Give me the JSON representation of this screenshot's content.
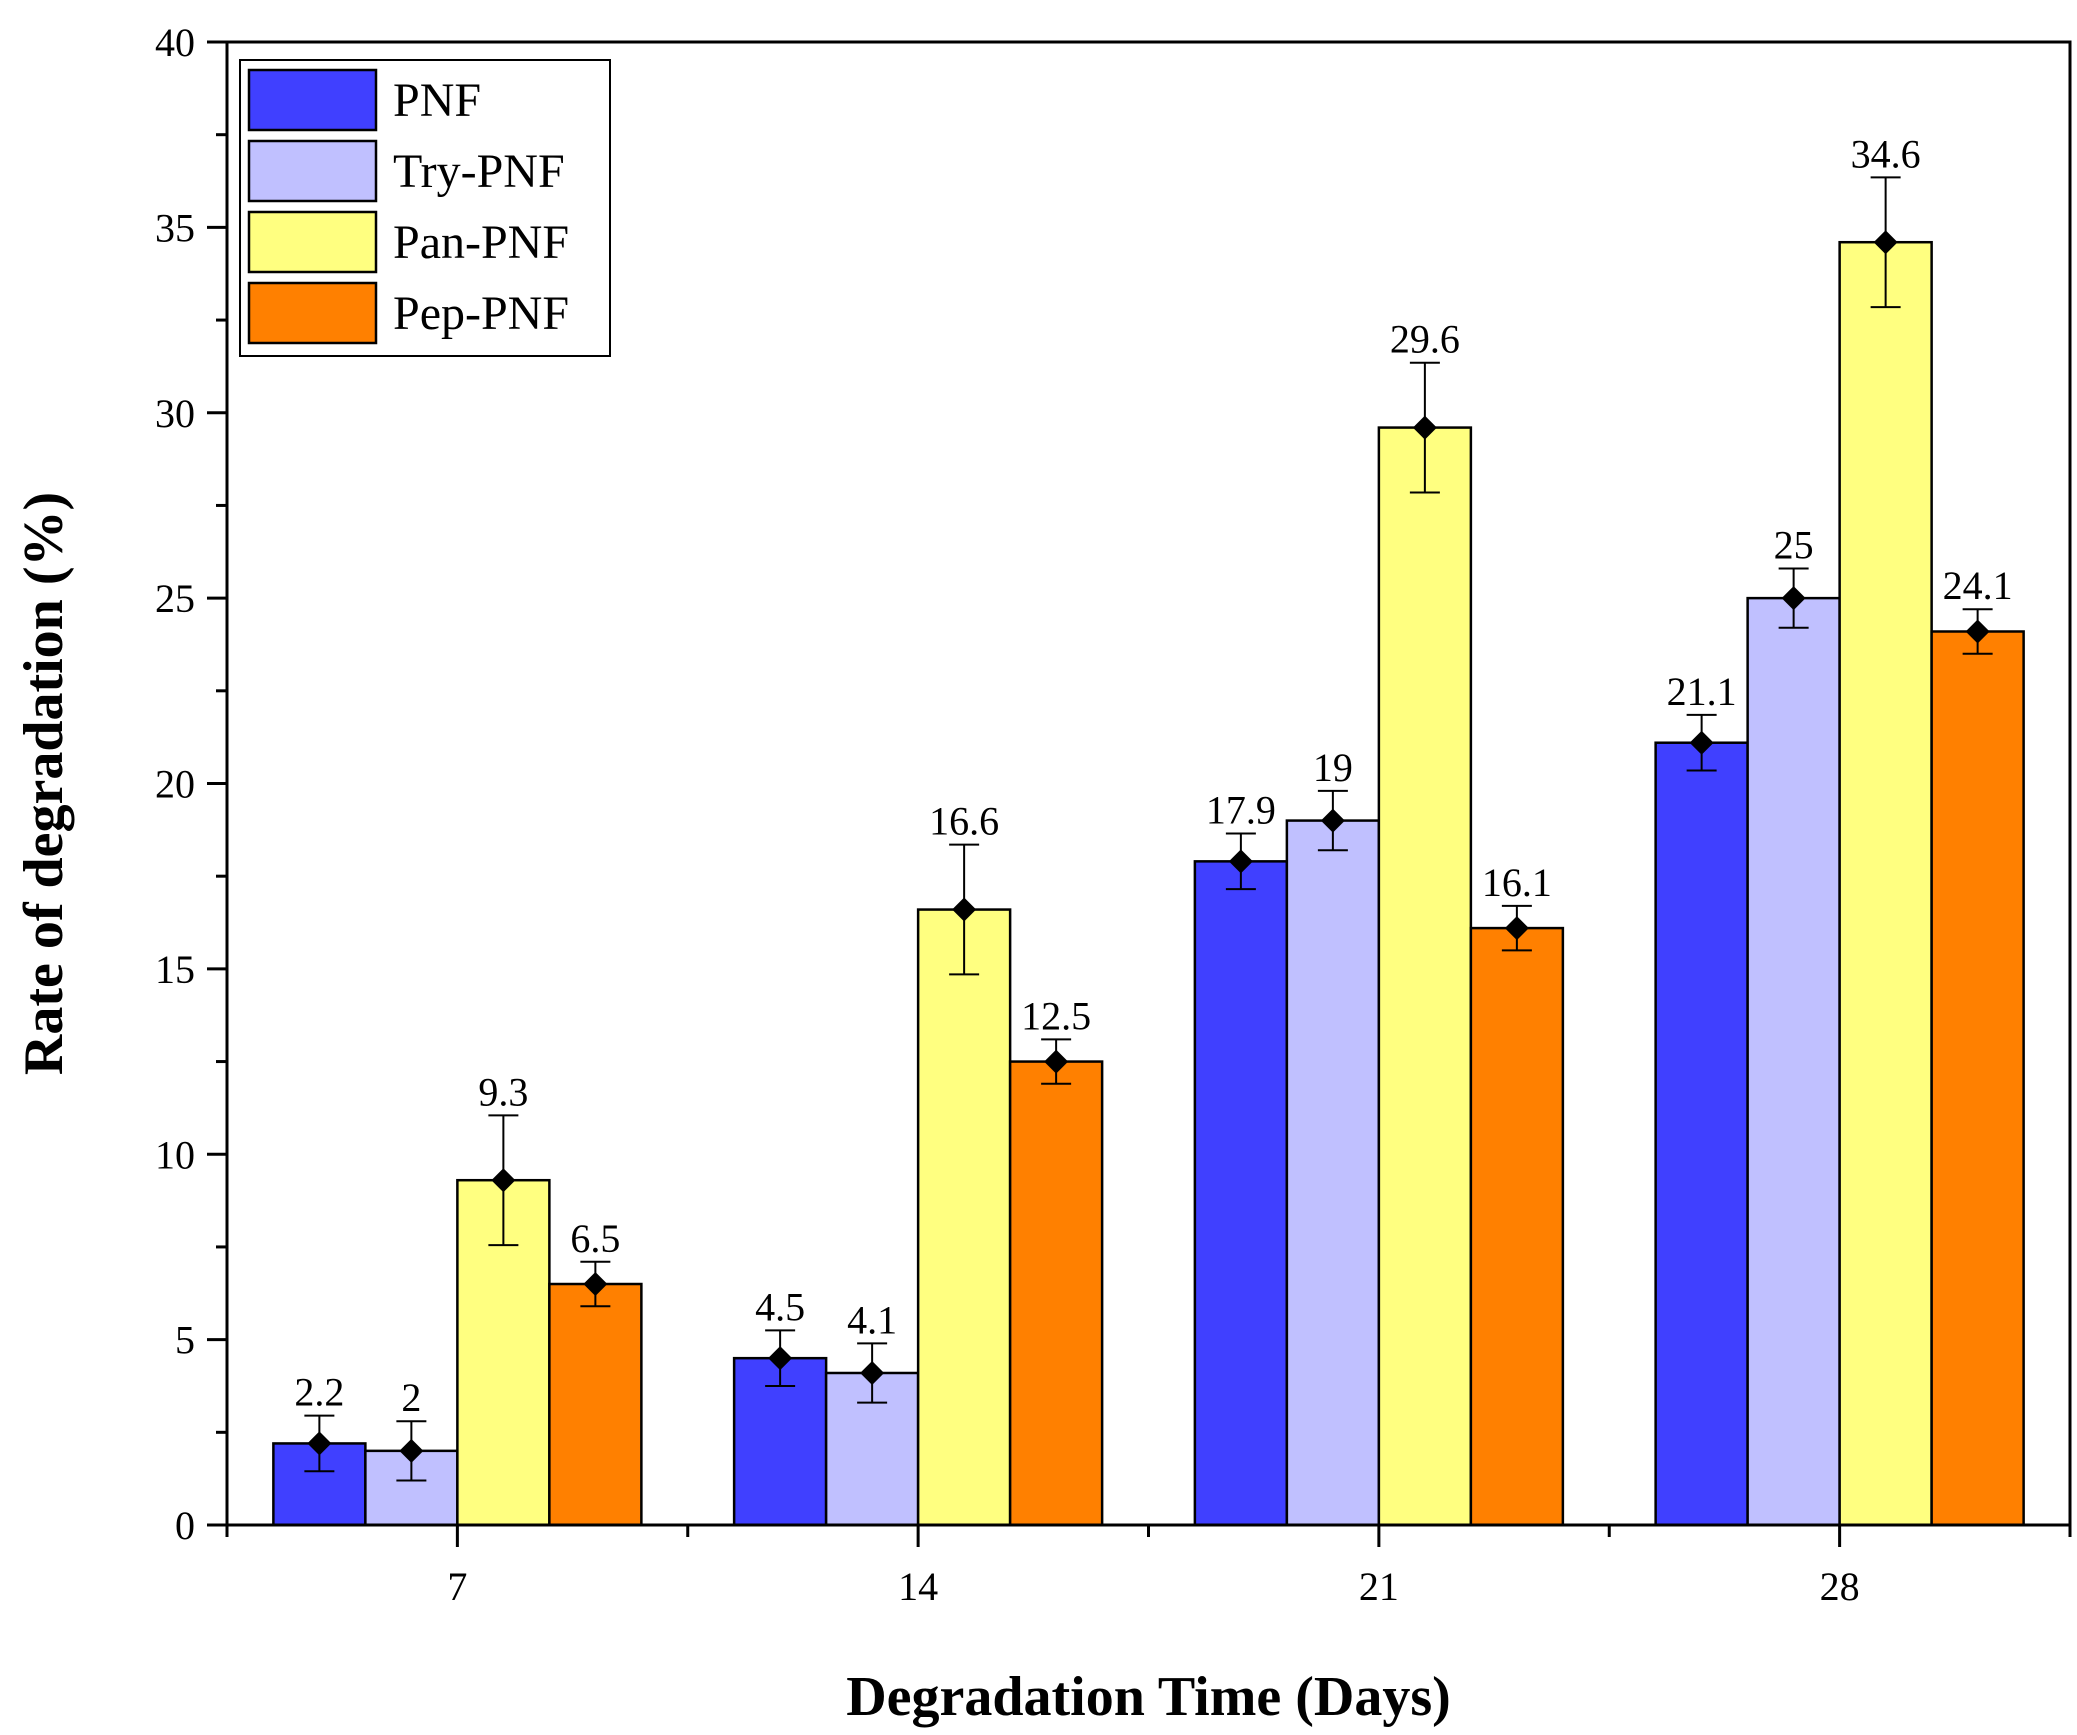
{
  "chart_data": {
    "type": "bar",
    "title": "",
    "xlabel": "Degradation Time (Days)",
    "ylabel": "Rate of degradation (%)",
    "categories": [
      "7",
      "14",
      "21",
      "28"
    ],
    "ylim": [
      0,
      40
    ],
    "yticks": [
      0,
      5,
      10,
      15,
      20,
      25,
      30,
      35,
      40
    ],
    "ytick_labels": [
      "0",
      "5",
      "10",
      "15",
      "20",
      "25",
      "30",
      "35",
      "40"
    ],
    "legend_position": "top-left",
    "grid": false,
    "series": [
      {
        "name": "PNF",
        "color": "#4040ff",
        "values": [
          2.2,
          4.5,
          17.9,
          21.1
        ],
        "labels": [
          "2.2",
          "4.5",
          "17.9",
          "21.1"
        ],
        "errors": [
          0.75,
          0.75,
          0.75,
          0.75
        ]
      },
      {
        "name": "Try-PNF",
        "color": "#c0c0ff",
        "values": [
          2,
          4.1,
          19,
          25
        ],
        "labels": [
          "2",
          "4.1",
          "19",
          "25"
        ],
        "errors": [
          0.8,
          0.8,
          0.8,
          0.8
        ]
      },
      {
        "name": "Pan-PNF",
        "color": "#ffff80",
        "values": [
          9.3,
          16.6,
          29.6,
          34.6
        ],
        "labels": [
          "9.3",
          "16.6",
          "29.6",
          "34.6"
        ],
        "errors": [
          1.75,
          1.75,
          1.75,
          1.75
        ]
      },
      {
        "name": "Pep-PNF",
        "color": "#ff8000",
        "values": [
          6.5,
          12.5,
          16.1,
          24.1
        ],
        "labels": [
          "6.5",
          "12.5",
          "16.1",
          "24.1"
        ],
        "errors": [
          0.6,
          0.6,
          0.6,
          0.6
        ]
      }
    ]
  }
}
